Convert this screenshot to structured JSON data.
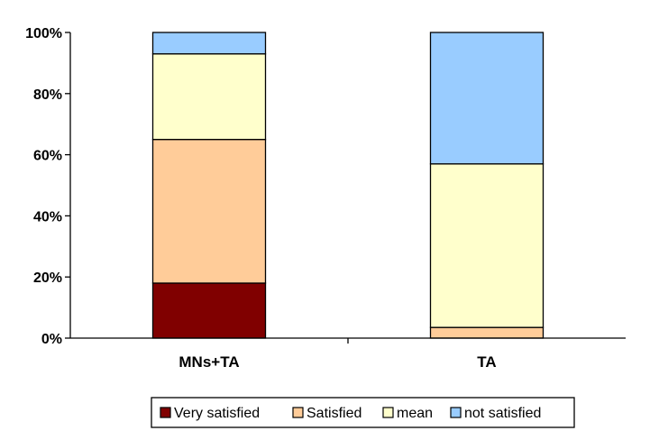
{
  "chart_data": {
    "type": "bar",
    "stacked": true,
    "percent": true,
    "categories": [
      "MNs+TA",
      "TA"
    ],
    "series": [
      {
        "name": "Very satisfied",
        "color": "#800000",
        "values": [
          18,
          0
        ]
      },
      {
        "name": "Satisfied",
        "color": "#FFCC99",
        "values": [
          47,
          3.5
        ]
      },
      {
        "name": "mean",
        "color": "#FFFFCC",
        "values": [
          28,
          53.5
        ]
      },
      {
        "name": "not satisfied",
        "color": "#99CCFF",
        "values": [
          7,
          43
        ]
      }
    ],
    "ylim": [
      0,
      100
    ],
    "yticks": [
      "0%",
      "20%",
      "40%",
      "60%",
      "80%",
      "100%"
    ],
    "ytick_values": [
      0,
      20,
      40,
      60,
      80,
      100
    ],
    "grid": false,
    "legend": "bottom"
  }
}
